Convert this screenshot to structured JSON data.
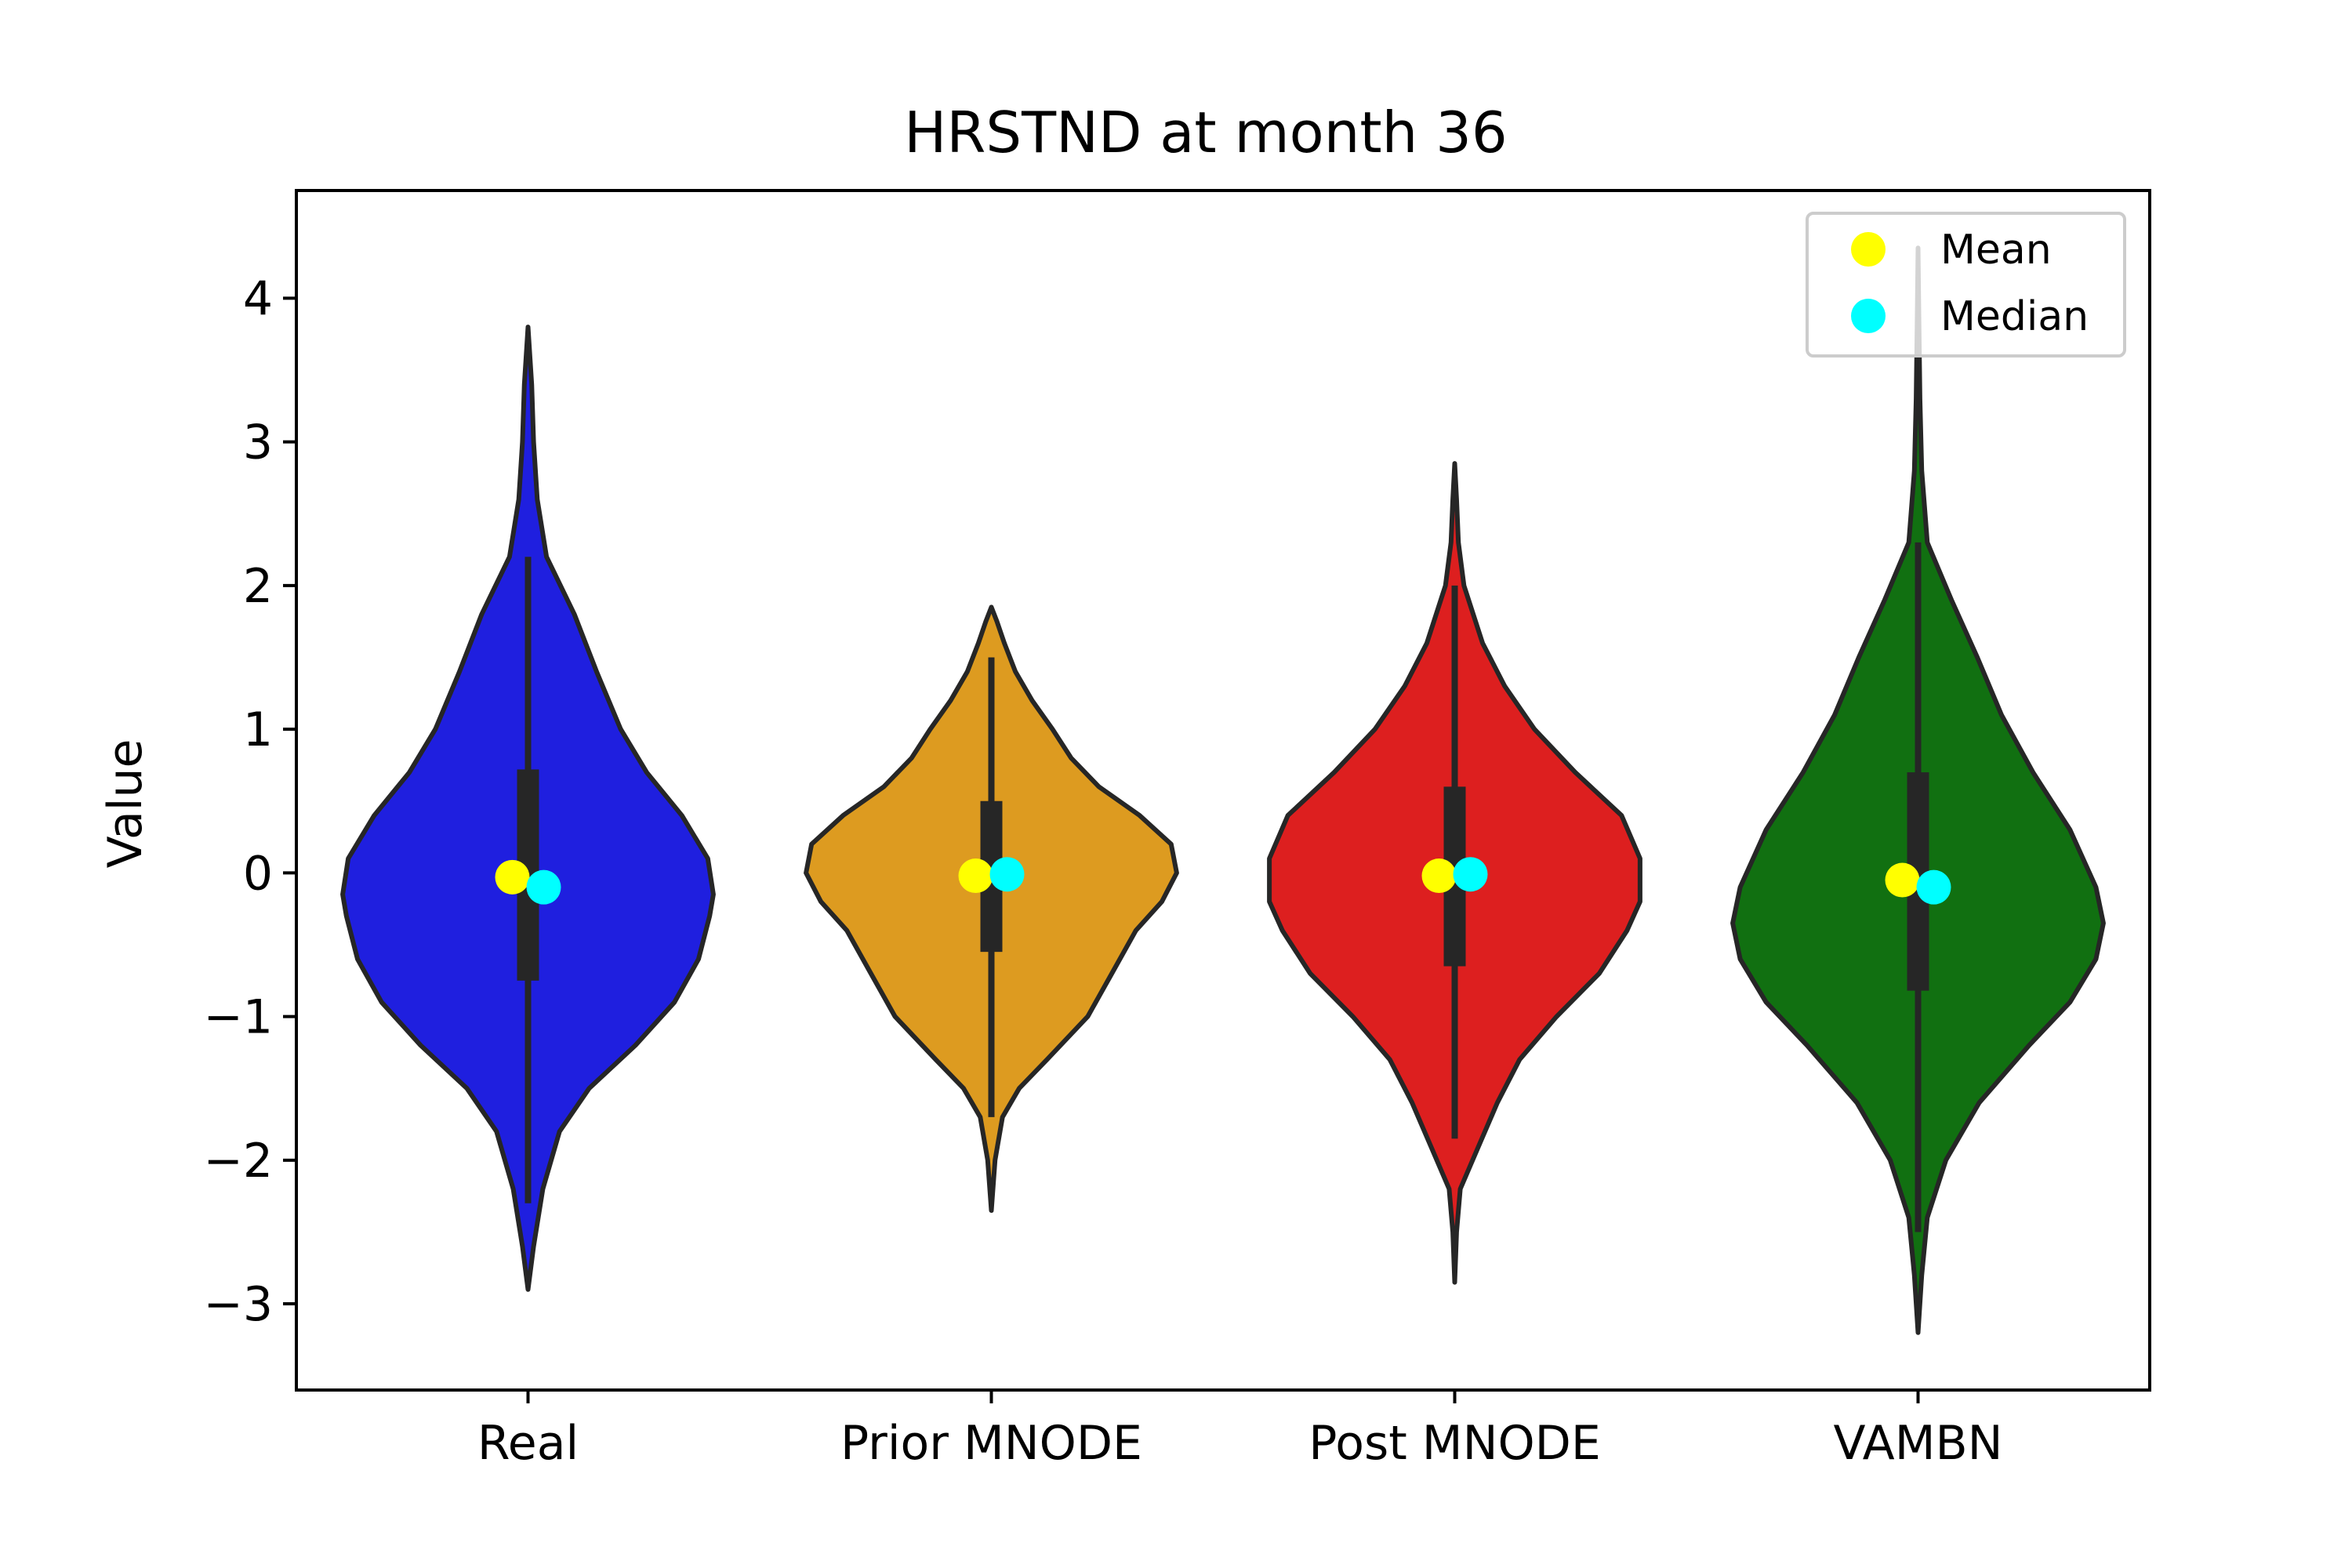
{
  "chart_data": {
    "type": "violin",
    "title": "HRSTND at month 36",
    "xlabel": "",
    "ylabel": "Value",
    "ylim": [
      -3.6,
      4.75
    ],
    "yticks": [
      {
        "value": -3,
        "label": "−3"
      },
      {
        "value": -2,
        "label": "−2"
      },
      {
        "value": -1,
        "label": "−1"
      },
      {
        "value": 0,
        "label": "0"
      },
      {
        "value": 1,
        "label": "1"
      },
      {
        "value": 2,
        "label": "2"
      },
      {
        "value": 3,
        "label": "3"
      },
      {
        "value": 4,
        "label": "4"
      }
    ],
    "categories": [
      "Real",
      "Prior MNODE",
      "Post MNODE",
      "VAMBN"
    ],
    "grid": false,
    "legend": {
      "placement": "top-right",
      "entries": [
        {
          "label": "Mean",
          "color": "#ffff00"
        },
        {
          "label": "Median",
          "color": "#00ffff"
        }
      ]
    },
    "series": [
      {
        "category": "Real",
        "color": "#1f1fdf",
        "min": -2.9,
        "max": 3.8,
        "q1": -0.75,
        "q3": 0.72,
        "whisker_low": -2.3,
        "whisker_high": 2.2,
        "mean": -0.03,
        "median": -0.1,
        "density_profile": [
          [
            -2.9,
            0.0
          ],
          [
            -2.6,
            0.03
          ],
          [
            -2.2,
            0.08
          ],
          [
            -1.8,
            0.17
          ],
          [
            -1.5,
            0.33
          ],
          [
            -1.2,
            0.58
          ],
          [
            -0.9,
            0.79
          ],
          [
            -0.6,
            0.92
          ],
          [
            -0.3,
            0.98
          ],
          [
            -0.15,
            1.0
          ],
          [
            0.1,
            0.97
          ],
          [
            0.4,
            0.83
          ],
          [
            0.7,
            0.64
          ],
          [
            1.0,
            0.5
          ],
          [
            1.4,
            0.37
          ],
          [
            1.8,
            0.25
          ],
          [
            2.2,
            0.1
          ],
          [
            2.6,
            0.05
          ],
          [
            3.0,
            0.03
          ],
          [
            3.4,
            0.02
          ],
          [
            3.8,
            0.0
          ]
        ]
      },
      {
        "category": "Prior MNODE",
        "color": "#dd9b20",
        "min": -2.35,
        "max": 1.85,
        "q1": -0.55,
        "q3": 0.5,
        "whisker_low": -1.7,
        "whisker_high": 1.5,
        "mean": -0.02,
        "median": -0.01,
        "density_profile": [
          [
            -2.35,
            0.0
          ],
          [
            -2.0,
            0.02
          ],
          [
            -1.7,
            0.06
          ],
          [
            -1.5,
            0.15
          ],
          [
            -1.3,
            0.3
          ],
          [
            -1.0,
            0.52
          ],
          [
            -0.7,
            0.65
          ],
          [
            -0.4,
            0.78
          ],
          [
            -0.2,
            0.92
          ],
          [
            0.0,
            1.0
          ],
          [
            0.2,
            0.97
          ],
          [
            0.4,
            0.8
          ],
          [
            0.6,
            0.58
          ],
          [
            0.8,
            0.43
          ],
          [
            1.0,
            0.33
          ],
          [
            1.2,
            0.22
          ],
          [
            1.4,
            0.13
          ],
          [
            1.6,
            0.07
          ],
          [
            1.75,
            0.03
          ],
          [
            1.85,
            0.0
          ]
        ]
      },
      {
        "category": "Post MNODE",
        "color": "#dd1f1f",
        "min": -2.85,
        "max": 2.85,
        "q1": -0.65,
        "q3": 0.6,
        "whisker_low": -1.85,
        "whisker_high": 2.0,
        "mean": -0.02,
        "median": -0.01,
        "density_profile": [
          [
            -2.85,
            0.0
          ],
          [
            -2.5,
            0.01
          ],
          [
            -2.2,
            0.03
          ],
          [
            -1.9,
            0.13
          ],
          [
            -1.6,
            0.23
          ],
          [
            -1.3,
            0.35
          ],
          [
            -1.0,
            0.55
          ],
          [
            -0.7,
            0.78
          ],
          [
            -0.4,
            0.93
          ],
          [
            -0.2,
            1.0
          ],
          [
            0.1,
            1.0
          ],
          [
            0.4,
            0.9
          ],
          [
            0.7,
            0.65
          ],
          [
            1.0,
            0.43
          ],
          [
            1.3,
            0.27
          ],
          [
            1.6,
            0.15
          ],
          [
            2.0,
            0.05
          ],
          [
            2.3,
            0.02
          ],
          [
            2.6,
            0.01
          ],
          [
            2.85,
            0.0
          ]
        ]
      },
      {
        "category": "VAMBN",
        "color": "#117011",
        "min": -3.2,
        "max": 4.35,
        "q1": -0.82,
        "q3": 0.7,
        "whisker_low": -2.5,
        "whisker_high": 2.3,
        "mean": -0.05,
        "median": -0.1,
        "density_profile": [
          [
            -3.2,
            0.0
          ],
          [
            -2.8,
            0.02
          ],
          [
            -2.4,
            0.05
          ],
          [
            -2.0,
            0.15
          ],
          [
            -1.6,
            0.33
          ],
          [
            -1.2,
            0.6
          ],
          [
            -0.9,
            0.82
          ],
          [
            -0.6,
            0.96
          ],
          [
            -0.35,
            1.0
          ],
          [
            -0.1,
            0.96
          ],
          [
            0.3,
            0.82
          ],
          [
            0.7,
            0.62
          ],
          [
            1.1,
            0.45
          ],
          [
            1.5,
            0.32
          ],
          [
            1.9,
            0.18
          ],
          [
            2.3,
            0.05
          ],
          [
            2.8,
            0.02
          ],
          [
            3.3,
            0.01
          ],
          [
            3.8,
            0.005
          ],
          [
            4.35,
            0.0
          ]
        ]
      }
    ]
  }
}
